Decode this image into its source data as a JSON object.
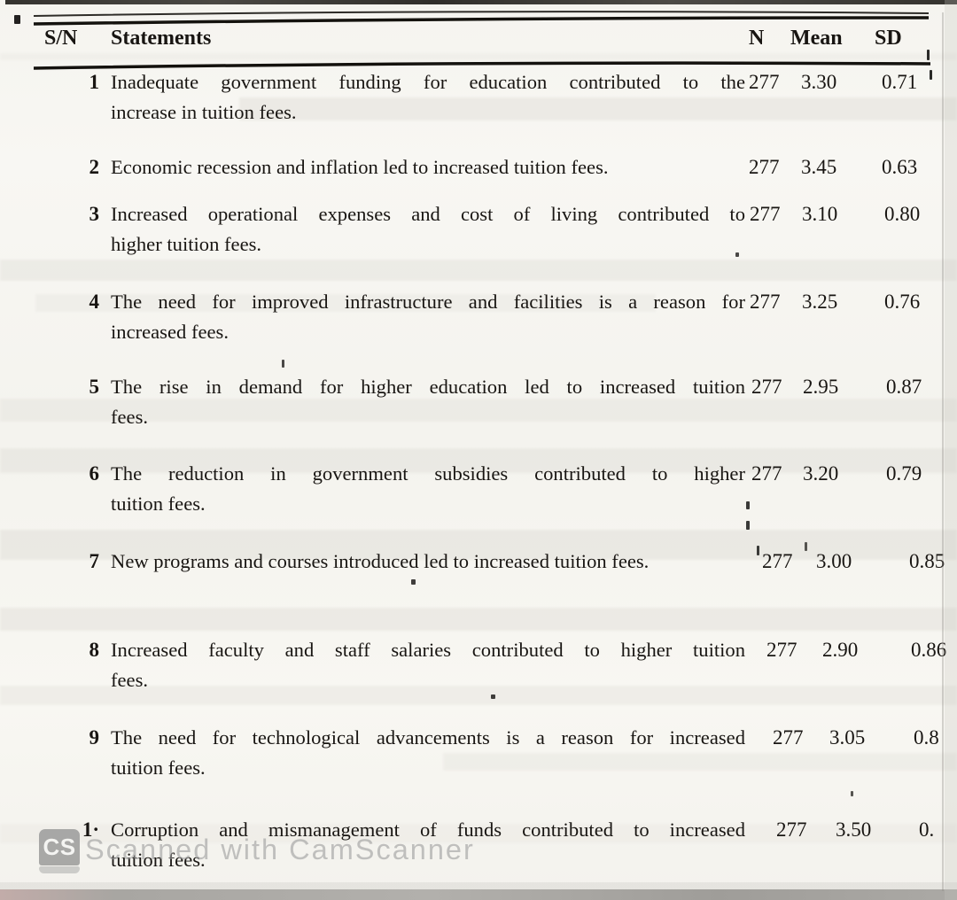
{
  "table": {
    "headers": {
      "sn": "S/N",
      "statements": "Statements",
      "n": "N",
      "mean": "Mean",
      "sd": "SD"
    },
    "rows": [
      {
        "sn": "1",
        "statement_lines": [
          "Inadequate government funding for education contributed to the",
          "increase in tuition fees."
        ],
        "n": "277",
        "mean": "3.30",
        "sd": "0.71"
      },
      {
        "sn": "2",
        "statement_lines": [
          "Economic recession and inflation led to increased tuition fees."
        ],
        "n": "277",
        "mean": "3.45",
        "sd": "0.63"
      },
      {
        "sn": "3",
        "statement_lines": [
          "Increased operational expenses and cost of living contributed to",
          "higher tuition fees."
        ],
        "n": "277",
        "mean": "3.10",
        "sd": "0.80"
      },
      {
        "sn": "4",
        "statement_lines": [
          "The need for improved infrastructure and facilities is a reason for",
          "increased fees."
        ],
        "n": "277",
        "mean": "3.25",
        "sd": "0.76"
      },
      {
        "sn": "5",
        "statement_lines": [
          "The rise in demand for higher education led to increased tuition",
          "fees."
        ],
        "n": "277",
        "mean": "2.95",
        "sd": "0.87"
      },
      {
        "sn": "6",
        "statement_lines": [
          "The reduction in government subsidies contributed to higher",
          "tuition fees."
        ],
        "n": "277",
        "mean": "3.20",
        "sd": "0.79"
      },
      {
        "sn": "7",
        "statement_lines": [
          "New programs and courses introduced led to increased tuition fees."
        ],
        "n": "277",
        "mean": "3.00",
        "sd": "0.85"
      },
      {
        "sn": "8",
        "statement_lines": [
          "Increased faculty and staff salaries contributed to higher tuition",
          "fees."
        ],
        "n": "277",
        "mean": "2.90",
        "sd": "0.86"
      },
      {
        "sn": "9",
        "statement_lines": [
          "The need for technological advancements is a reason for increased",
          "tuition fees."
        ],
        "n": "277",
        "mean": "3.05",
        "sd": "0.8"
      },
      {
        "sn": "1·",
        "statement_lines": [
          "Corruption and mismanagement of funds contributed to increased",
          "tuition fees."
        ],
        "n": "277",
        "mean": "3.50",
        "sd": "0."
      }
    ]
  },
  "watermark": {
    "badge_text": "CS",
    "label": "Scanned with CamScanner"
  },
  "colors": {
    "paper": "#f7f6f1",
    "ink": "#181512",
    "watermark_gray": "#9a9a9a",
    "band": "#e2e0da",
    "top_strip": "#403e3a",
    "bottom_strip": "#a8a6a1"
  }
}
